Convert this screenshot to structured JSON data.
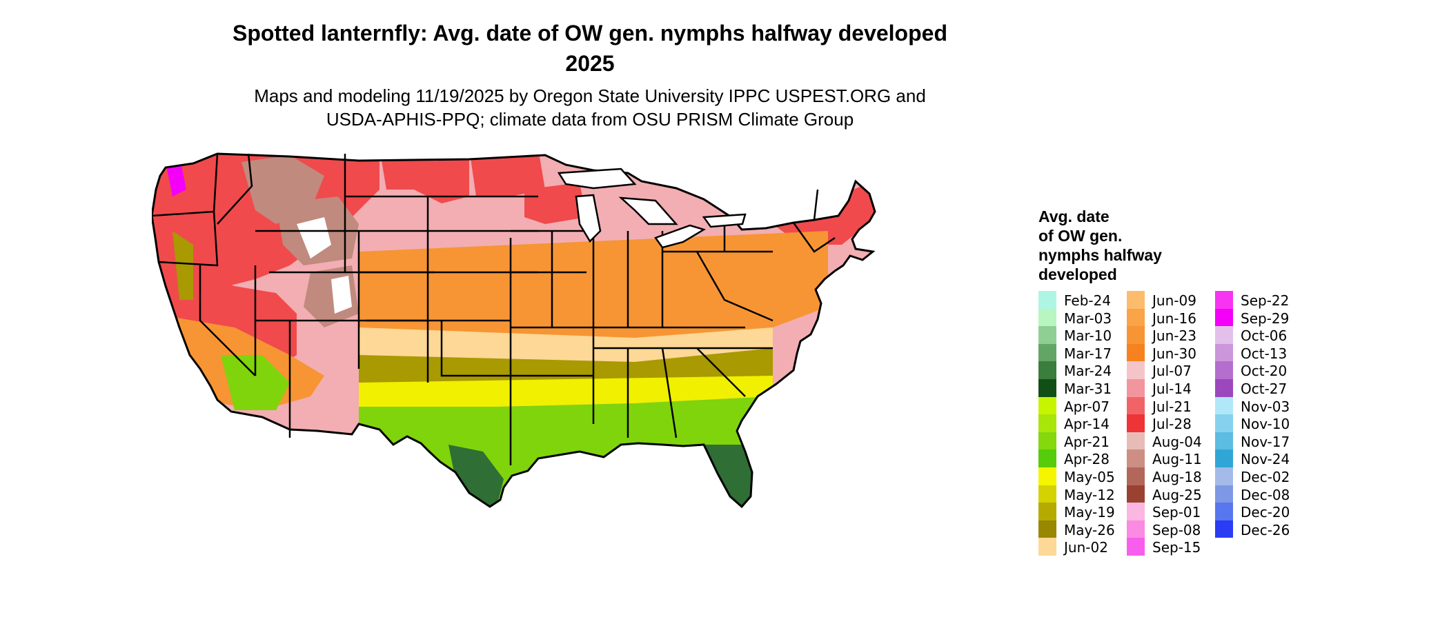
{
  "title_line1": "Spotted lanternfly: Avg. date of OW gen. nymphs halfway developed",
  "title_line2": "2025",
  "subtitle_line1": "Maps and modeling 11/19/2025 by Oregon State University IPPC USPEST.ORG and",
  "subtitle_line2": "USDA-APHIS-PPQ; climate data from OSU PRISM Climate Group",
  "legend": {
    "title_lines": [
      "Avg. date",
      "of OW gen.",
      "nymphs halfway",
      "developed"
    ],
    "columns": [
      [
        {
          "label": "Feb-24",
          "color": "#aef5e4"
        },
        {
          "label": "Mar-03",
          "color": "#b8f5c0"
        },
        {
          "label": "Mar-10",
          "color": "#8fcf94"
        },
        {
          "label": "Mar-17",
          "color": "#62a564"
        },
        {
          "label": "Mar-24",
          "color": "#3b7d3d"
        },
        {
          "label": "Mar-31",
          "color": "#124f17"
        },
        {
          "label": "Apr-07",
          "color": "#c7f500"
        },
        {
          "label": "Apr-14",
          "color": "#a8e60a"
        },
        {
          "label": "Apr-21",
          "color": "#84d80c"
        },
        {
          "label": "Apr-28",
          "color": "#56cc0a"
        },
        {
          "label": "May-05",
          "color": "#f5f500"
        },
        {
          "label": "May-12",
          "color": "#d4d200"
        },
        {
          "label": "May-19",
          "color": "#b5ab00"
        },
        {
          "label": "May-26",
          "color": "#988700"
        },
        {
          "label": "Jun-02",
          "color": "#fdd896"
        }
      ],
      [
        {
          "label": "Jun-09",
          "color": "#fcbc6c"
        },
        {
          "label": "Jun-16",
          "color": "#f9a448"
        },
        {
          "label": "Jun-23",
          "color": "#f79534"
        },
        {
          "label": "Jun-30",
          "color": "#f5821e"
        },
        {
          "label": "Jul-07",
          "color": "#f5c4c8"
        },
        {
          "label": "Jul-14",
          "color": "#f2959c"
        },
        {
          "label": "Jul-21",
          "color": "#f06468"
        },
        {
          "label": "Jul-28",
          "color": "#ee3436"
        },
        {
          "label": "Aug-04",
          "color": "#e7bcb6"
        },
        {
          "label": "Aug-11",
          "color": "#cd8e84"
        },
        {
          "label": "Aug-18",
          "color": "#b2675a"
        },
        {
          "label": "Aug-25",
          "color": "#9a4232"
        },
        {
          "label": "Sep-01",
          "color": "#fcb6e2"
        },
        {
          "label": "Sep-08",
          "color": "#fa8ae2"
        },
        {
          "label": "Sep-15",
          "color": "#f85eec"
        }
      ],
      [
        {
          "label": "Sep-22",
          "color": "#f634f2"
        },
        {
          "label": "Sep-29",
          "color": "#f400f8"
        },
        {
          "label": "Oct-06",
          "color": "#e2c0ea"
        },
        {
          "label": "Oct-13",
          "color": "#cc96da"
        },
        {
          "label": "Oct-20",
          "color": "#b46ece"
        },
        {
          "label": "Oct-27",
          "color": "#9c48bc"
        },
        {
          "label": "Nov-03",
          "color": "#b0e8fa"
        },
        {
          "label": "Nov-10",
          "color": "#86d2ee"
        },
        {
          "label": "Nov-17",
          "color": "#5cbce2"
        },
        {
          "label": "Nov-24",
          "color": "#30a6d6"
        },
        {
          "label": "Dec-02",
          "color": "#a4bae8"
        },
        {
          "label": "Dec-08",
          "color": "#7e98e6"
        },
        {
          "label": "Dec-20",
          "color": "#5876ee"
        },
        {
          "label": "Dec-26",
          "color": "#2a3cf4"
        }
      ]
    ]
  },
  "map": {
    "region": "contiguous-united-states",
    "colors": {
      "west_red": "#f04a4c",
      "north_pink": "#f2aeb2",
      "central_orange": "#f79534",
      "southern_tan": "#fdd896",
      "olive": "#a89a00",
      "yellow": "#f0f000",
      "green": "#7fd40c",
      "dark_green": "#2f6e34",
      "brown": "#c08a7e",
      "white": "#ffffff",
      "magenta": "#f400f8"
    }
  }
}
